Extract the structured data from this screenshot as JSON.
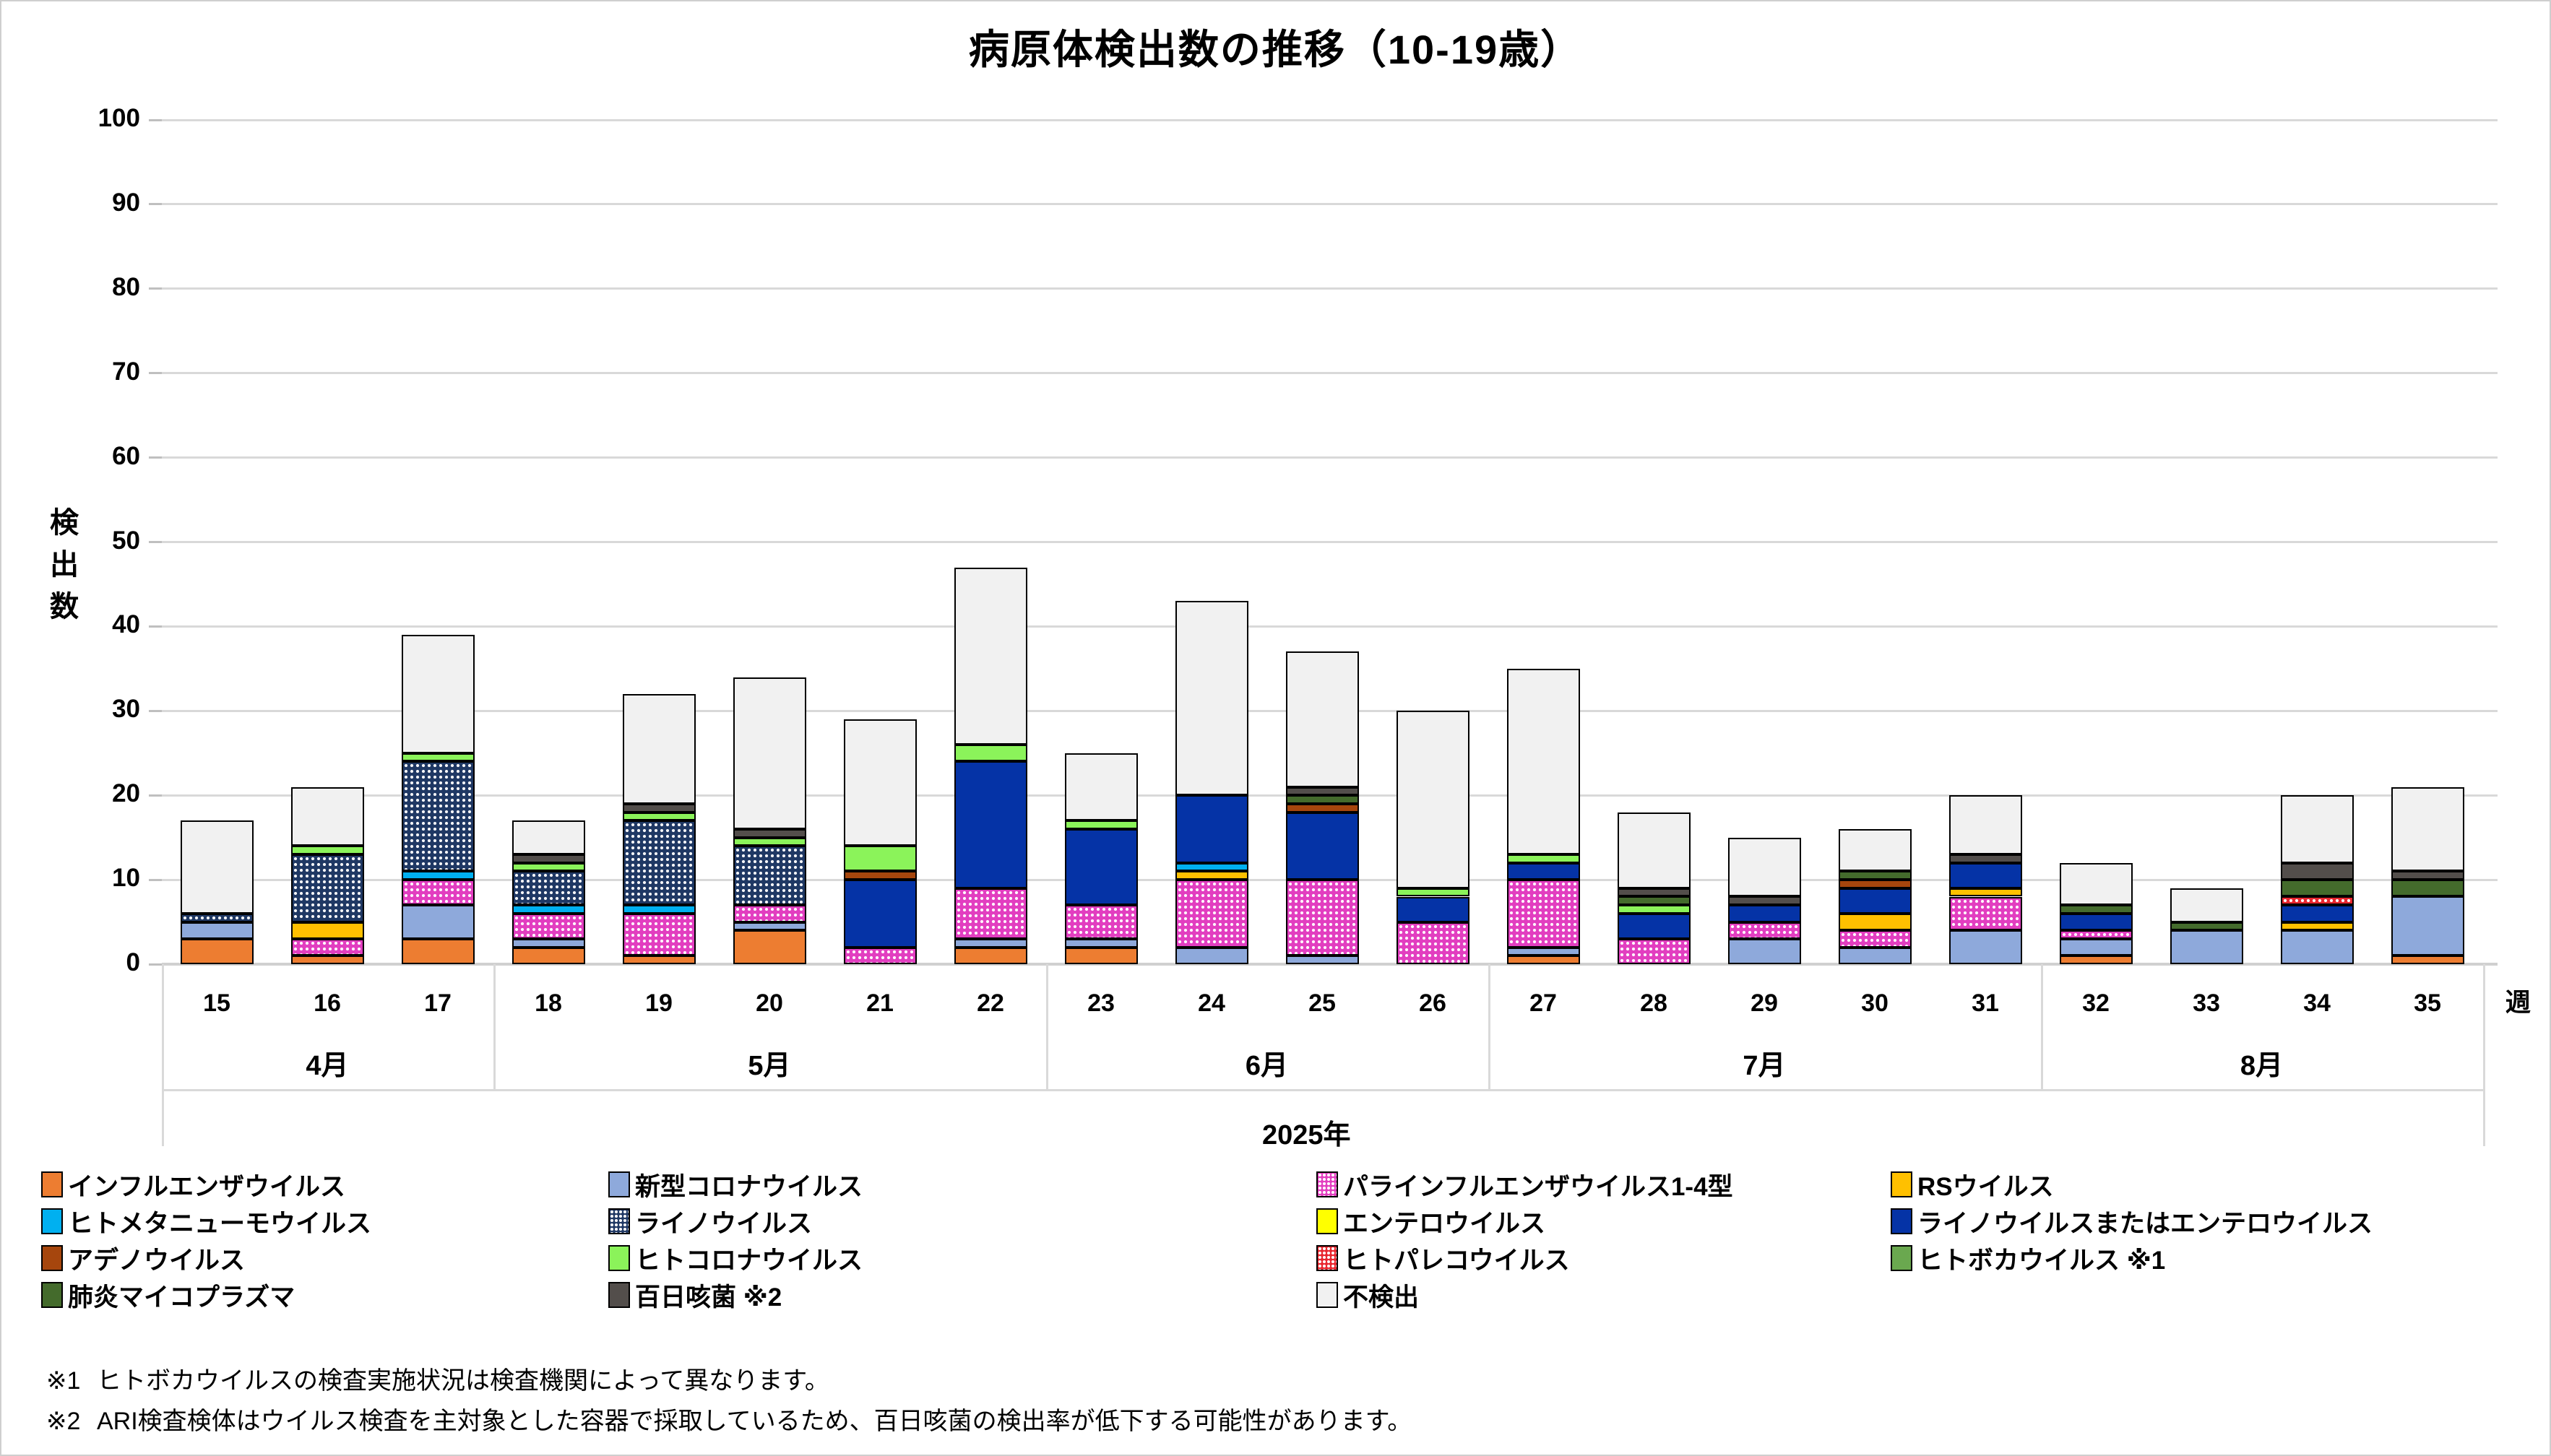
{
  "title": "病原体検出数の推移（10-19歳）",
  "y_axis": {
    "title": "検出数",
    "tick_step": 10,
    "min": 0,
    "max": 100
  },
  "x_axis": {
    "unit_label": "週",
    "year_label": "2025年"
  },
  "footnotes": [
    {
      "mark": "※1",
      "text": "ヒトボカウイルスの検査実施状況は検査機関によって異なります。"
    },
    {
      "mark": "※2",
      "text": "ARI検査検体はウイルス検査を主対象とした容器で採取しているため、百日咳菌の検出率が低下する可能性があります。"
    }
  ],
  "chart_data": {
    "type": "bar",
    "stacked": true,
    "title": "病原体検出数の推移（10-19歳）",
    "xlabel": "週",
    "ylabel": "検出数",
    "ylim": [
      0,
      100
    ],
    "y_tick_step": 10,
    "grid": true,
    "legend_position": "bottom",
    "categories": [
      15,
      16,
      17,
      18,
      19,
      20,
      21,
      22,
      23,
      24,
      25,
      26,
      27,
      28,
      29,
      30,
      31,
      32,
      33,
      34,
      35
    ],
    "month_groups": [
      {
        "label": "4月",
        "weeks": [
          15,
          16,
          17
        ]
      },
      {
        "label": "5月",
        "weeks": [
          18,
          19,
          20,
          21,
          22
        ]
      },
      {
        "label": "6月",
        "weeks": [
          23,
          24,
          25,
          26
        ]
      },
      {
        "label": "7月",
        "weeks": [
          27,
          28,
          29,
          30,
          31
        ]
      },
      {
        "label": "8月",
        "weeks": [
          32,
          33,
          34,
          35
        ]
      }
    ],
    "year": "2025年",
    "totals": [
      17,
      21,
      39,
      17,
      32,
      34,
      29,
      47,
      25,
      43,
      37,
      30,
      35,
      18,
      15,
      16,
      20,
      12,
      9,
      20,
      21
    ],
    "series": [
      {
        "name": "インフルエンザウイルス",
        "key": "influenza",
        "color": "#ED7D31",
        "pattern": "solid",
        "values": [
          3,
          1,
          3,
          2,
          1,
          4,
          0,
          2,
          2,
          0,
          0,
          0,
          1,
          0,
          0,
          0,
          0,
          1,
          0,
          0,
          1
        ]
      },
      {
        "name": "新型コロナウイルス",
        "key": "covid",
        "color": "#8EA9DB",
        "pattern": "solid",
        "values": [
          2,
          0,
          4,
          1,
          0,
          1,
          0,
          1,
          1,
          2,
          1,
          0,
          1,
          0,
          3,
          2,
          4,
          2,
          4,
          4,
          7
        ]
      },
      {
        "name": "パラインフルエンザウイルス1-4型",
        "key": "parainfluenza",
        "color": "#E23EC0",
        "pattern": "dots",
        "values": [
          0,
          2,
          3,
          3,
          5,
          2,
          2,
          6,
          4,
          8,
          9,
          5,
          8,
          3,
          2,
          2,
          4,
          1,
          0,
          0,
          0
        ]
      },
      {
        "name": "RSウイルス",
        "key": "rsv",
        "color": "#FFC000",
        "pattern": "solid",
        "values": [
          0,
          2,
          0,
          0,
          0,
          0,
          0,
          0,
          0,
          1,
          0,
          0,
          0,
          0,
          0,
          2,
          1,
          0,
          0,
          1,
          0
        ]
      },
      {
        "name": "ヒトメタニューモウイルス",
        "key": "hmpv",
        "color": "#00B0F0",
        "pattern": "solid",
        "values": [
          0,
          0,
          1,
          1,
          1,
          0,
          0,
          0,
          0,
          1,
          0,
          0,
          0,
          0,
          0,
          0,
          0,
          0,
          0,
          0,
          0
        ]
      },
      {
        "name": "ライノウイルス",
        "key": "rhinovirus",
        "color": "#1F3864",
        "pattern": "dots",
        "values": [
          1,
          8,
          13,
          4,
          10,
          7,
          0,
          0,
          0,
          0,
          0,
          0,
          0,
          0,
          0,
          0,
          0,
          0,
          0,
          0,
          0
        ]
      },
      {
        "name": "エンテロウイルス",
        "key": "enterovirus",
        "color": "#FFFF00",
        "pattern": "solid",
        "values": [
          0,
          0,
          0,
          0,
          0,
          0,
          0,
          0,
          0,
          0,
          0,
          0,
          0,
          0,
          0,
          0,
          0,
          0,
          0,
          0,
          0
        ]
      },
      {
        "name": "ライノウイルスまたはエンテロウイルス",
        "key": "rhino_or_entero",
        "color": "#0533A6",
        "pattern": "solid",
        "values": [
          0,
          0,
          0,
          0,
          0,
          0,
          8,
          15,
          9,
          8,
          8,
          3,
          2,
          3,
          2,
          3,
          3,
          2,
          0,
          2,
          0
        ]
      },
      {
        "name": "アデノウイルス",
        "key": "adenovirus",
        "color": "#A6460D",
        "pattern": "solid",
        "values": [
          0,
          0,
          0,
          0,
          0,
          0,
          1,
          0,
          0,
          0,
          1,
          0,
          0,
          0,
          0,
          1,
          0,
          0,
          0,
          0,
          0
        ]
      },
      {
        "name": "ヒトコロナウイルス",
        "key": "hcov",
        "color": "#8BF35A",
        "pattern": "solid",
        "values": [
          0,
          1,
          1,
          1,
          1,
          1,
          3,
          2,
          1,
          0,
          0,
          1,
          1,
          1,
          0,
          0,
          0,
          0,
          0,
          0,
          0
        ]
      },
      {
        "name": "ヒトパレコウイルス",
        "key": "parechovirus",
        "color": "#E8262E",
        "pattern": "dots",
        "values": [
          0,
          0,
          0,
          0,
          0,
          0,
          0,
          0,
          0,
          0,
          0,
          0,
          0,
          0,
          0,
          0,
          0,
          0,
          0,
          1,
          0
        ]
      },
      {
        "name": "ヒトボカウイルス",
        "legend_label": "ヒトボカウイルス ※1",
        "key": "bocavirus",
        "color": "#6AA84F",
        "pattern": "solid",
        "values": [
          0,
          0,
          0,
          0,
          0,
          0,
          0,
          0,
          0,
          0,
          0,
          0,
          0,
          0,
          0,
          0,
          0,
          0,
          0,
          0,
          0
        ]
      },
      {
        "name": "肺炎マイコプラズマ",
        "key": "mycoplasma",
        "color": "#446B2C",
        "pattern": "solid",
        "values": [
          0,
          0,
          0,
          0,
          0,
          0,
          0,
          0,
          0,
          0,
          1,
          0,
          0,
          1,
          0,
          1,
          0,
          1,
          1,
          2,
          2
        ]
      },
      {
        "name": "百日咳菌",
        "legend_label": "百日咳菌 ※2",
        "key": "pertussis",
        "color": "#534E4B",
        "pattern": "solid",
        "values": [
          0,
          0,
          0,
          1,
          1,
          1,
          0,
          0,
          0,
          0,
          1,
          0,
          0,
          1,
          1,
          0,
          1,
          0,
          0,
          2,
          1
        ]
      },
      {
        "name": "不検出",
        "key": "not_detected",
        "color": "#F1F1F1",
        "pattern": "solid",
        "values": [
          11,
          7,
          14,
          4,
          13,
          18,
          15,
          21,
          8,
          23,
          16,
          21,
          22,
          9,
          7,
          5,
          7,
          5,
          4,
          8,
          10
        ]
      }
    ]
  }
}
